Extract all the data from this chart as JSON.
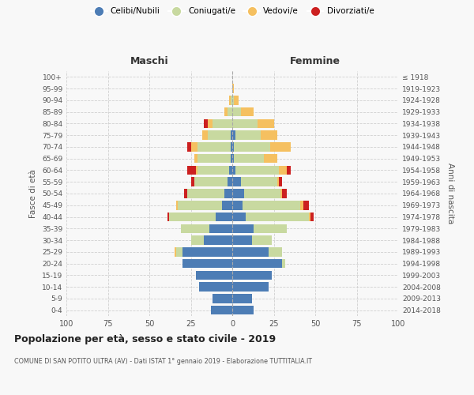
{
  "age_groups": [
    "0-4",
    "5-9",
    "10-14",
    "15-19",
    "20-24",
    "25-29",
    "30-34",
    "35-39",
    "40-44",
    "45-49",
    "50-54",
    "55-59",
    "60-64",
    "65-69",
    "70-74",
    "75-79",
    "80-84",
    "85-89",
    "90-94",
    "95-99",
    "100+"
  ],
  "birth_years": [
    "2014-2018",
    "2009-2013",
    "2004-2008",
    "1999-2003",
    "1994-1998",
    "1989-1993",
    "1984-1988",
    "1979-1983",
    "1974-1978",
    "1969-1973",
    "1964-1968",
    "1959-1963",
    "1954-1958",
    "1949-1953",
    "1944-1948",
    "1939-1943",
    "1934-1938",
    "1929-1933",
    "1924-1928",
    "1919-1923",
    "≤ 1918"
  ],
  "male": {
    "celibi": [
      13,
      12,
      20,
      22,
      30,
      30,
      17,
      14,
      10,
      6,
      5,
      3,
      2,
      1,
      1,
      1,
      0,
      0,
      0,
      0,
      0
    ],
    "coniugati": [
      0,
      0,
      0,
      0,
      0,
      4,
      8,
      17,
      28,
      27,
      22,
      20,
      19,
      20,
      20,
      14,
      12,
      3,
      1,
      0,
      0
    ],
    "vedovi": [
      0,
      0,
      0,
      0,
      0,
      1,
      0,
      0,
      0,
      1,
      0,
      0,
      1,
      2,
      4,
      3,
      3,
      2,
      1,
      0,
      0
    ],
    "divorziati": [
      0,
      0,
      0,
      0,
      0,
      0,
      0,
      0,
      1,
      0,
      2,
      2,
      5,
      0,
      2,
      0,
      2,
      0,
      0,
      0,
      0
    ]
  },
  "female": {
    "nubili": [
      13,
      12,
      22,
      24,
      30,
      22,
      12,
      13,
      8,
      6,
      7,
      5,
      2,
      1,
      1,
      2,
      0,
      0,
      0,
      0,
      0
    ],
    "coniugate": [
      0,
      0,
      0,
      0,
      2,
      8,
      12,
      20,
      38,
      35,
      22,
      22,
      26,
      18,
      22,
      15,
      15,
      5,
      1,
      0,
      0
    ],
    "vedove": [
      0,
      0,
      0,
      0,
      0,
      0,
      0,
      0,
      1,
      2,
      1,
      1,
      5,
      8,
      12,
      10,
      10,
      8,
      3,
      1,
      0
    ],
    "divorziate": [
      0,
      0,
      0,
      0,
      0,
      0,
      0,
      0,
      2,
      3,
      3,
      2,
      2,
      0,
      0,
      0,
      0,
      0,
      0,
      0,
      0
    ]
  },
  "colors": {
    "celibi": "#4d7db5",
    "coniugati": "#c8d9a0",
    "vedovi": "#f5c060",
    "divorziati": "#cc2020"
  },
  "xlim": 100,
  "title": "Popolazione per età, sesso e stato civile - 2019",
  "subtitle": "COMUNE DI SAN POTITO ULTRA (AV) - Dati ISTAT 1° gennaio 2019 - Elaborazione TUTTITALIA.IT",
  "xlabel_left": "Maschi",
  "xlabel_right": "Femmine",
  "ylabel_left": "Fasce di età",
  "ylabel_right": "Anni di nascita",
  "legend_labels": [
    "Celibi/Nubili",
    "Coniugati/e",
    "Vedovi/e",
    "Divorziati/e"
  ],
  "bg_color": "#f8f8f8",
  "grid_color": "#cccccc"
}
